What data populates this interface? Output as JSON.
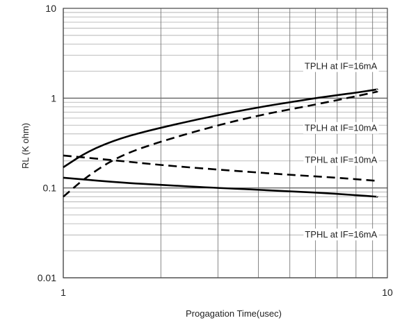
{
  "chart_data": {
    "type": "line",
    "title": "",
    "xlabel": "Progagation Time(usec)",
    "ylabel": "RL (K ohm)",
    "xscale": "log",
    "yscale": "log",
    "xlim": [
      1,
      10
    ],
    "ylim": [
      0.01,
      10
    ],
    "x_tick_labels": [
      "1",
      "10"
    ],
    "y_tick_labels": [
      "10",
      "1",
      "0.1",
      "0.01"
    ],
    "grid": true,
    "series": [
      {
        "name": "TPLH at IF=16mA",
        "style": "solid",
        "color": "#000000",
        "x": [
          1.0,
          1.2,
          1.5,
          2.0,
          3.0,
          4.0,
          5.0,
          6.0,
          7.0,
          8.0,
          9.3
        ],
        "y": [
          0.17,
          0.26,
          0.36,
          0.47,
          0.65,
          0.79,
          0.9,
          1.0,
          1.08,
          1.15,
          1.25
        ]
      },
      {
        "name": "TPLH at IF=10mA",
        "style": "dashed",
        "color": "#000000",
        "x": [
          1.0,
          1.2,
          1.5,
          2.0,
          3.0,
          4.0,
          5.0,
          6.0,
          7.0,
          8.0,
          9.3
        ],
        "y": [
          0.08,
          0.14,
          0.23,
          0.33,
          0.5,
          0.64,
          0.75,
          0.85,
          0.95,
          1.05,
          1.18
        ]
      },
      {
        "name": "TPHL at IF=10mA",
        "style": "dashed",
        "color": "#000000",
        "x": [
          1.0,
          1.5,
          2.0,
          3.0,
          5.0,
          7.0,
          9.3
        ],
        "y": [
          0.23,
          0.2,
          0.18,
          0.16,
          0.14,
          0.13,
          0.12
        ]
      },
      {
        "name": "TPHL at IF=16mA",
        "style": "solid",
        "color": "#000000",
        "x": [
          1.0,
          1.5,
          2.0,
          3.0,
          5.0,
          7.0,
          9.3
        ],
        "y": [
          0.13,
          0.115,
          0.108,
          0.1,
          0.092,
          0.086,
          0.08
        ]
      }
    ],
    "annotations": [
      {
        "text": "TPLH at IF=16mA",
        "x": 9.3,
        "y": 2.1
      },
      {
        "text": "TPLH at IF=10mA",
        "x": 9.3,
        "y": 0.43
      },
      {
        "text": "TPHL at IF=10mA",
        "x": 9.3,
        "y": 0.19
      },
      {
        "text": "TPHL at IF=16mA",
        "x": 9.3,
        "y": 0.028
      }
    ]
  }
}
